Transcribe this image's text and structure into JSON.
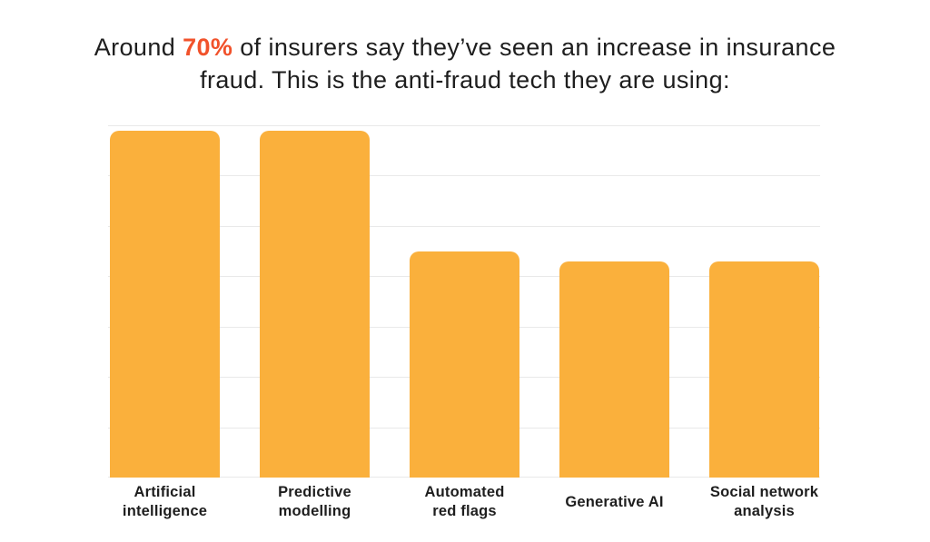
{
  "title": {
    "line1_prefix": "Around ",
    "line1_highlight": "70%",
    "line1_suffix": " of insurers say they’ve seen an increase in insurance",
    "line2": "fraud. This is the anti-fraud tech they are using:"
  },
  "colors": {
    "accent": "#F1522B",
    "bar": "#FAB03C",
    "gridline": "#E9E9E9",
    "text": "#1E1E1E"
  },
  "chart_data": {
    "type": "bar",
    "title": "Around 70% of insurers say they’ve seen an increase in insurance fraud. This is the anti-fraud tech they are using:",
    "categories": [
      "Artificial intelligence",
      "Predictive modelling",
      "Automated red flags",
      "Generative AI",
      "Social network analysis"
    ],
    "label_lines": [
      [
        "Artificial",
        "intelligence"
      ],
      [
        "Predictive",
        "modelling"
      ],
      [
        "Automated",
        "red flags"
      ],
      [
        "Generative AI"
      ],
      [
        "Social network",
        "analysis"
      ]
    ],
    "values": [
      69,
      69,
      45,
      43,
      43
    ],
    "xlabel": "",
    "ylabel": "",
    "ylim": [
      0,
      70
    ],
    "gridline_step": 10,
    "grid": true,
    "legend": "none",
    "value_labels_shown": false
  }
}
